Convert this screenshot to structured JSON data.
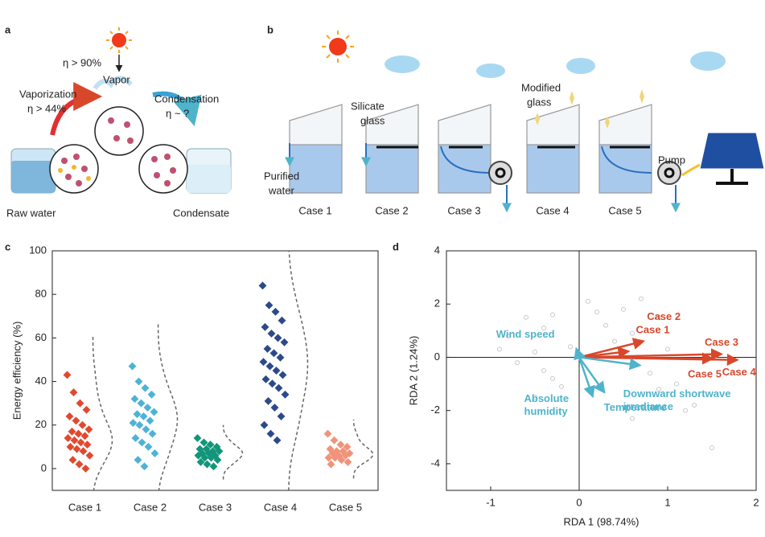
{
  "panel_a": {
    "label": "a",
    "efficiency_top": "η > 90%",
    "vapor": "Vapor",
    "vaporization": "Vaporization",
    "vaporization_eff": "η > 44%",
    "condensation": "Condensation",
    "condensation_eff": "η ~ ?",
    "raw_water": "Raw water",
    "condensate": "Condensate"
  },
  "panel_b": {
    "label": "b",
    "silicate_glass": [
      "Silicate",
      "glass"
    ],
    "purified_water": [
      "Purified",
      "water"
    ],
    "modified_glass": [
      "Modified",
      "glass"
    ],
    "pump": "Pump",
    "cases": [
      "Case 1",
      "Case 2",
      "Case 3",
      "Case 4",
      "Case 5"
    ]
  },
  "chart_data": [
    {
      "type": "strip",
      "panel_label": "c",
      "ylabel": "Energy efficiency (%)",
      "categories": [
        "Case 1",
        "Case 2",
        "Case 3",
        "Case 4",
        "Case 5"
      ],
      "ylim": [
        -10,
        100
      ],
      "yticks": [
        0,
        20,
        40,
        60,
        80,
        100
      ],
      "series": [
        {
          "color": "#e0492f",
          "values": [
            43,
            35,
            30,
            27,
            24,
            22,
            20,
            18,
            17,
            16,
            15,
            14,
            13,
            12,
            11,
            10,
            9,
            8,
            6,
            4,
            2,
            0
          ]
        },
        {
          "color": "#4db3d6",
          "values": [
            47,
            40,
            37,
            34,
            32,
            30,
            28,
            26,
            25,
            24,
            22,
            21,
            20,
            18,
            16,
            14,
            12,
            10,
            7,
            4,
            1
          ]
        },
        {
          "color": "#13957a",
          "values": [
            14,
            12,
            11,
            10,
            9,
            9,
            8,
            8,
            7,
            7,
            6,
            6,
            5,
            5,
            4,
            3,
            2,
            1
          ]
        },
        {
          "color": "#2c4a8a",
          "values": [
            84,
            75,
            72,
            68,
            65,
            62,
            60,
            58,
            55,
            53,
            51,
            49,
            47,
            45,
            43,
            41,
            39,
            37,
            34,
            31,
            28,
            24,
            20,
            16,
            13
          ]
        },
        {
          "color": "#f0937a",
          "values": [
            16,
            13,
            11,
            10,
            9,
            8,
            8,
            7,
            7,
            6,
            6,
            5,
            5,
            4,
            3,
            2
          ]
        }
      ]
    },
    {
      "type": "biplot",
      "panel_label": "d",
      "xlabel": "RDA 1 (98.74%)",
      "ylabel": "RDA 2 (1.24%)",
      "xlim": [
        -1.5,
        2
      ],
      "ylim": [
        -5,
        4
      ],
      "xticks": [
        -1,
        0,
        1,
        2
      ],
      "yticks": [
        -4,
        -2,
        0,
        2,
        4
      ],
      "points": {
        "color": "#c8c8c8",
        "x": [
          -0.8,
          -0.6,
          -0.5,
          -0.4,
          -0.3,
          -0.2,
          -0.1,
          0.1,
          0.3,
          0.5,
          0.6,
          0.7,
          0.8,
          0.9,
          1.0,
          1.1,
          -0.7,
          -0.5,
          -0.3,
          0.2,
          0.4,
          1.3,
          1.5,
          -0.9,
          0.9,
          1.2,
          -0.4,
          0.6
        ],
        "y": [
          0.8,
          1.5,
          0.2,
          -0.5,
          1.6,
          -1.1,
          0.4,
          2.1,
          1.2,
          1.8,
          0.9,
          2.2,
          -0.6,
          1.5,
          0.3,
          -1.0,
          -0.2,
          -1.5,
          -0.8,
          1.7,
          0.6,
          -1.8,
          -3.4,
          0.3,
          -1.2,
          -2.0,
          1.1,
          -2.3
        ]
      },
      "arrows": [
        {
          "label": [
            "Case 1"
          ],
          "color": "#d9472b",
          "x": 0.55,
          "y": 0.22
        },
        {
          "label": [
            "Case 2"
          ],
          "color": "#d9472b",
          "x": 0.72,
          "y": 0.6
        },
        {
          "label": [
            "Case 3"
          ],
          "color": "#d9472b",
          "x": 1.6,
          "y": 0.12
        },
        {
          "label": [
            "Case 4"
          ],
          "color": "#d9472b",
          "x": 1.78,
          "y": -0.1
        },
        {
          "label": [
            "Case 5"
          ],
          "color": "#d9472b",
          "x": 1.5,
          "y": -0.05
        },
        {
          "label": [
            "Wind speed"
          ],
          "color": "#4fb3cc",
          "x": -0.03,
          "y": 0.3
        },
        {
          "label": [
            "Absolute",
            "humidity"
          ],
          "color": "#4fb3cc",
          "x": 0.15,
          "y": -1.45
        },
        {
          "label": [
            "Temperature"
          ],
          "color": "#4fb3cc",
          "x": 0.28,
          "y": -1.3
        },
        {
          "label": [
            "Downward shortwave",
            "irradiance"
          ],
          "color": "#4fb3cc",
          "x": 0.68,
          "y": -0.3
        }
      ]
    }
  ]
}
